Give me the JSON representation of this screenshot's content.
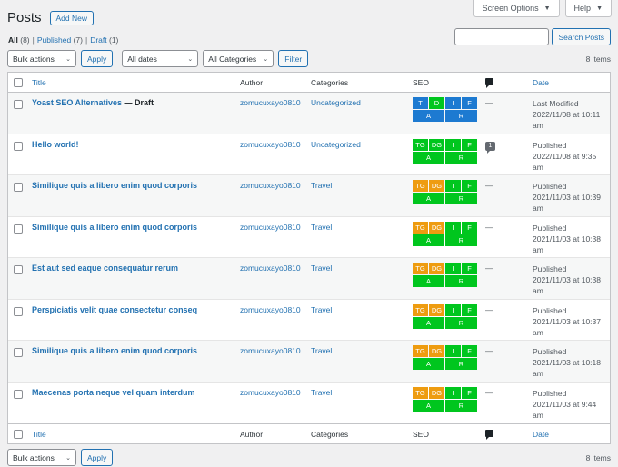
{
  "header": {
    "screen_options": "Screen Options",
    "help": "Help",
    "title": "Posts",
    "add_new": "Add New"
  },
  "filters": {
    "all": "All",
    "all_count": "(8)",
    "published": "Published",
    "published_count": "(7)",
    "draft": "Draft",
    "draft_count": "(1)",
    "sep": "|"
  },
  "search": {
    "placeholder": "",
    "button": "Search Posts"
  },
  "toolbar": {
    "bulk_actions": "Bulk actions",
    "apply": "Apply",
    "dates": "All dates",
    "categories": "All Categories",
    "filter": "Filter",
    "items": "8 items"
  },
  "columns": {
    "title": "Title",
    "author": "Author",
    "categories": "Categories",
    "seo": "SEO",
    "date": "Date"
  },
  "colors": {
    "blue": "#2271b1",
    "green": "#00c61e",
    "orange": "#ee9c10",
    "seo_blue": "#1d7ad1"
  },
  "posts": [
    {
      "title": "Yoast SEO Alternatives",
      "state": " — Draft",
      "author": "zomucuxayo0810",
      "category": "Uncategorized",
      "comments": "—",
      "date_status": "Last Modified",
      "date_line1": "2022/11/08 at 10:11",
      "date_line2": "am",
      "seo": [
        {
          "t": "T",
          "c": "#1d7ad1"
        },
        {
          "t": "D",
          "c": "#00c61e"
        },
        {
          "t": "I",
          "c": "#1d7ad1"
        },
        {
          "t": "F",
          "c": "#1d7ad1"
        },
        {
          "t": "A",
          "c": "#1d7ad1",
          "w": 1
        },
        {
          "t": "R",
          "c": "#1d7ad1",
          "w": 1
        }
      ]
    },
    {
      "title": "Hello world!",
      "state": "",
      "author": "zomucuxayo0810",
      "category": "Uncategorized",
      "comments": "1",
      "date_status": "Published",
      "date_line1": "2022/11/08 at 9:35",
      "date_line2": "am",
      "seo": [
        {
          "t": "TG",
          "c": "#00c61e"
        },
        {
          "t": "DG",
          "c": "#00c61e"
        },
        {
          "t": "I",
          "c": "#00c61e"
        },
        {
          "t": "F",
          "c": "#00c61e"
        },
        {
          "t": "A",
          "c": "#00c61e",
          "w": 1
        },
        {
          "t": "R",
          "c": "#00c61e",
          "w": 1
        }
      ]
    },
    {
      "title": "Similique quis a libero enim quod corporis",
      "state": "",
      "author": "zomucuxayo0810",
      "category": "Travel",
      "comments": "—",
      "date_status": "Published",
      "date_line1": "2021/11/03 at 10:39",
      "date_line2": "am",
      "seo": [
        {
          "t": "TG",
          "c": "#ee9c10"
        },
        {
          "t": "DG",
          "c": "#ee9c10"
        },
        {
          "t": "I",
          "c": "#00c61e"
        },
        {
          "t": "F",
          "c": "#00c61e"
        },
        {
          "t": "A",
          "c": "#00c61e",
          "w": 1
        },
        {
          "t": "R",
          "c": "#00c61e",
          "w": 1
        }
      ]
    },
    {
      "title": "Similique quis a libero enim quod corporis",
      "state": "",
      "author": "zomucuxayo0810",
      "category": "Travel",
      "comments": "—",
      "date_status": "Published",
      "date_line1": "2021/11/03 at 10:38",
      "date_line2": "am",
      "seo": [
        {
          "t": "TG",
          "c": "#ee9c10"
        },
        {
          "t": "DG",
          "c": "#ee9c10"
        },
        {
          "t": "I",
          "c": "#00c61e"
        },
        {
          "t": "F",
          "c": "#00c61e"
        },
        {
          "t": "A",
          "c": "#00c61e",
          "w": 1
        },
        {
          "t": "R",
          "c": "#00c61e",
          "w": 1
        }
      ]
    },
    {
      "title": "Est aut sed eaque consequatur rerum",
      "state": "",
      "author": "zomucuxayo0810",
      "category": "Travel",
      "comments": "—",
      "date_status": "Published",
      "date_line1": "2021/11/03 at 10:38",
      "date_line2": "am",
      "seo": [
        {
          "t": "TG",
          "c": "#ee9c10"
        },
        {
          "t": "DG",
          "c": "#ee9c10"
        },
        {
          "t": "I",
          "c": "#00c61e"
        },
        {
          "t": "F",
          "c": "#00c61e"
        },
        {
          "t": "A",
          "c": "#00c61e",
          "w": 1
        },
        {
          "t": "R",
          "c": "#00c61e",
          "w": 1
        }
      ]
    },
    {
      "title": "Perspiciatis velit quae consectetur conseq",
      "state": "",
      "author": "zomucuxayo0810",
      "category": "Travel",
      "comments": "—",
      "date_status": "Published",
      "date_line1": "2021/11/03 at 10:37",
      "date_line2": "am",
      "seo": [
        {
          "t": "TG",
          "c": "#ee9c10"
        },
        {
          "t": "DG",
          "c": "#ee9c10"
        },
        {
          "t": "I",
          "c": "#00c61e"
        },
        {
          "t": "F",
          "c": "#00c61e"
        },
        {
          "t": "A",
          "c": "#00c61e",
          "w": 1
        },
        {
          "t": "R",
          "c": "#00c61e",
          "w": 1
        }
      ]
    },
    {
      "title": "Similique quis a libero enim quod corporis",
      "state": "",
      "author": "zomucuxayo0810",
      "category": "Travel",
      "comments": "—",
      "date_status": "Published",
      "date_line1": "2021/11/03 at 10:18",
      "date_line2": "am",
      "seo": [
        {
          "t": "TG",
          "c": "#ee9c10"
        },
        {
          "t": "DG",
          "c": "#ee9c10"
        },
        {
          "t": "I",
          "c": "#00c61e"
        },
        {
          "t": "F",
          "c": "#00c61e"
        },
        {
          "t": "A",
          "c": "#00c61e",
          "w": 1
        },
        {
          "t": "R",
          "c": "#00c61e",
          "w": 1
        }
      ]
    },
    {
      "title": "Maecenas porta neque vel quam interdum",
      "state": "",
      "author": "zomucuxayo0810",
      "category": "Travel",
      "comments": "—",
      "date_status": "Published",
      "date_line1": "2021/11/03 at 9:44",
      "date_line2": "am",
      "seo": [
        {
          "t": "TG",
          "c": "#ee9c10"
        },
        {
          "t": "DG",
          "c": "#ee9c10"
        },
        {
          "t": "I",
          "c": "#00c61e"
        },
        {
          "t": "F",
          "c": "#00c61e"
        },
        {
          "t": "A",
          "c": "#00c61e",
          "w": 1
        },
        {
          "t": "R",
          "c": "#00c61e",
          "w": 1
        }
      ]
    }
  ]
}
